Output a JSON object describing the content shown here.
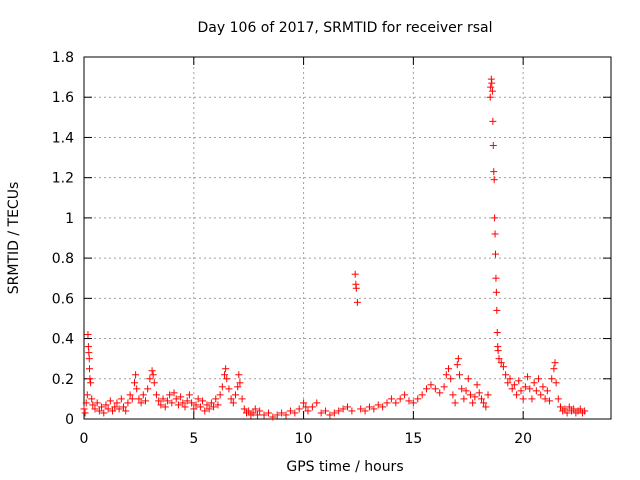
{
  "chart_data": {
    "type": "scatter",
    "title": "Day 106 of 2017, SRMTID for receiver rsal",
    "xlabel": "GPS time / hours",
    "ylabel": "SRMTID / TECUs",
    "xlim": [
      0,
      24
    ],
    "ylim": [
      0,
      1.8
    ],
    "xticks": [
      0,
      5,
      10,
      15,
      20
    ],
    "xtick_labels": [
      "0",
      "5",
      "10",
      "15",
      "20"
    ],
    "yticks": [
      0,
      0.2,
      0.4,
      0.6,
      0.8,
      1.0,
      1.2,
      1.4,
      1.6,
      1.8
    ],
    "ytick_labels": [
      "0",
      "0.2",
      "0.4",
      "0.6",
      "0.8",
      "1",
      "1.2",
      "1.4",
      "1.6",
      "1.8"
    ],
    "grid": true,
    "marker": "+",
    "marker_color": "#ff0000",
    "series": [
      {
        "name": "SRMTID",
        "points": [
          [
            0.0,
            0.05
          ],
          [
            0.05,
            0.03
          ],
          [
            0.1,
            0.08
          ],
          [
            0.15,
            0.12
          ],
          [
            0.18,
            0.42
          ],
          [
            0.2,
            0.36
          ],
          [
            0.22,
            0.33
          ],
          [
            0.24,
            0.3
          ],
          [
            0.25,
            0.25
          ],
          [
            0.27,
            0.2
          ],
          [
            0.3,
            0.18
          ],
          [
            0.35,
            0.1
          ],
          [
            0.4,
            0.07
          ],
          [
            0.5,
            0.05
          ],
          [
            0.6,
            0.08
          ],
          [
            0.7,
            0.04
          ],
          [
            0.8,
            0.06
          ],
          [
            0.9,
            0.03
          ],
          [
            1.0,
            0.07
          ],
          [
            1.1,
            0.05
          ],
          [
            1.2,
            0.09
          ],
          [
            1.3,
            0.04
          ],
          [
            1.4,
            0.06
          ],
          [
            1.5,
            0.08
          ],
          [
            1.6,
            0.05
          ],
          [
            1.7,
            0.1
          ],
          [
            1.8,
            0.06
          ],
          [
            1.9,
            0.04
          ],
          [
            2.0,
            0.08
          ],
          [
            2.1,
            0.12
          ],
          [
            2.2,
            0.1
          ],
          [
            2.3,
            0.18
          ],
          [
            2.35,
            0.22
          ],
          [
            2.4,
            0.15
          ],
          [
            2.5,
            0.1
          ],
          [
            2.6,
            0.08
          ],
          [
            2.7,
            0.12
          ],
          [
            2.8,
            0.09
          ],
          [
            2.9,
            0.15
          ],
          [
            3.0,
            0.2
          ],
          [
            3.1,
            0.24
          ],
          [
            3.15,
            0.22
          ],
          [
            3.2,
            0.18
          ],
          [
            3.3,
            0.12
          ],
          [
            3.4,
            0.09
          ],
          [
            3.5,
            0.07
          ],
          [
            3.6,
            0.1
          ],
          [
            3.7,
            0.06
          ],
          [
            3.8,
            0.09
          ],
          [
            3.9,
            0.12
          ],
          [
            4.0,
            0.08
          ],
          [
            4.1,
            0.13
          ],
          [
            4.2,
            0.1
          ],
          [
            4.3,
            0.07
          ],
          [
            4.4,
            0.11
          ],
          [
            4.5,
            0.08
          ],
          [
            4.6,
            0.06
          ],
          [
            4.7,
            0.09
          ],
          [
            4.8,
            0.12
          ],
          [
            4.9,
            0.08
          ],
          [
            5.0,
            0.05
          ],
          [
            5.1,
            0.07
          ],
          [
            5.2,
            0.1
          ],
          [
            5.3,
            0.06
          ],
          [
            5.4,
            0.09
          ],
          [
            5.5,
            0.04
          ],
          [
            5.6,
            0.07
          ],
          [
            5.7,
            0.05
          ],
          [
            5.8,
            0.08
          ],
          [
            5.9,
            0.06
          ],
          [
            6.0,
            0.1
          ],
          [
            6.1,
            0.07
          ],
          [
            6.2,
            0.12
          ],
          [
            6.3,
            0.16
          ],
          [
            6.4,
            0.22
          ],
          [
            6.45,
            0.25
          ],
          [
            6.5,
            0.2
          ],
          [
            6.6,
            0.15
          ],
          [
            6.7,
            0.1
          ],
          [
            6.8,
            0.08
          ],
          [
            6.9,
            0.12
          ],
          [
            7.0,
            0.16
          ],
          [
            7.05,
            0.22
          ],
          [
            7.1,
            0.18
          ],
          [
            7.2,
            0.1
          ],
          [
            7.3,
            0.05
          ],
          [
            7.4,
            0.03
          ],
          [
            7.5,
            0.04
          ],
          [
            7.6,
            0.02
          ],
          [
            7.7,
            0.03
          ],
          [
            7.8,
            0.05
          ],
          [
            7.9,
            0.02
          ],
          [
            8.0,
            0.04
          ],
          [
            8.2,
            0.02
          ],
          [
            8.4,
            0.03
          ],
          [
            8.6,
            0.01
          ],
          [
            8.8,
            0.02
          ],
          [
            9.0,
            0.03
          ],
          [
            9.2,
            0.02
          ],
          [
            9.4,
            0.04
          ],
          [
            9.6,
            0.03
          ],
          [
            9.8,
            0.05
          ],
          [
            10.0,
            0.08
          ],
          [
            10.1,
            0.06
          ],
          [
            10.2,
            0.04
          ],
          [
            10.4,
            0.06
          ],
          [
            10.6,
            0.08
          ],
          [
            10.8,
            0.03
          ],
          [
            11.0,
            0.04
          ],
          [
            11.2,
            0.02
          ],
          [
            11.4,
            0.03
          ],
          [
            11.6,
            0.04
          ],
          [
            11.8,
            0.05
          ],
          [
            12.0,
            0.06
          ],
          [
            12.2,
            0.04
          ],
          [
            12.35,
            0.72
          ],
          [
            12.38,
            0.67
          ],
          [
            12.4,
            0.65
          ],
          [
            12.45,
            0.58
          ],
          [
            12.6,
            0.05
          ],
          [
            12.8,
            0.04
          ],
          [
            13.0,
            0.06
          ],
          [
            13.2,
            0.05
          ],
          [
            13.4,
            0.07
          ],
          [
            13.6,
            0.06
          ],
          [
            13.8,
            0.08
          ],
          [
            14.0,
            0.1
          ],
          [
            14.2,
            0.08
          ],
          [
            14.4,
            0.1
          ],
          [
            14.6,
            0.12
          ],
          [
            14.8,
            0.09
          ],
          [
            15.0,
            0.08
          ],
          [
            15.2,
            0.1
          ],
          [
            15.4,
            0.12
          ],
          [
            15.6,
            0.15
          ],
          [
            15.8,
            0.17
          ],
          [
            16.0,
            0.15
          ],
          [
            16.2,
            0.13
          ],
          [
            16.4,
            0.16
          ],
          [
            16.5,
            0.22
          ],
          [
            16.6,
            0.25
          ],
          [
            16.7,
            0.2
          ],
          [
            16.8,
            0.12
          ],
          [
            16.9,
            0.08
          ],
          [
            17.0,
            0.27
          ],
          [
            17.05,
            0.3
          ],
          [
            17.1,
            0.22
          ],
          [
            17.2,
            0.15
          ],
          [
            17.3,
            0.1
          ],
          [
            17.4,
            0.14
          ],
          [
            17.5,
            0.2
          ],
          [
            17.6,
            0.12
          ],
          [
            17.7,
            0.08
          ],
          [
            17.8,
            0.11
          ],
          [
            17.9,
            0.17
          ],
          [
            18.0,
            0.13
          ],
          [
            18.1,
            0.1
          ],
          [
            18.2,
            0.08
          ],
          [
            18.3,
            0.06
          ],
          [
            18.4,
            0.12
          ],
          [
            18.5,
            1.6
          ],
          [
            18.52,
            1.65
          ],
          [
            18.55,
            1.69
          ],
          [
            18.57,
            1.67
          ],
          [
            18.6,
            1.63
          ],
          [
            18.62,
            1.48
          ],
          [
            18.64,
            1.36
          ],
          [
            18.66,
            1.23
          ],
          [
            18.68,
            1.19
          ],
          [
            18.7,
            1.0
          ],
          [
            18.72,
            0.92
          ],
          [
            18.74,
            0.82
          ],
          [
            18.76,
            0.7
          ],
          [
            18.78,
            0.63
          ],
          [
            18.8,
            0.54
          ],
          [
            18.82,
            0.43
          ],
          [
            18.84,
            0.36
          ],
          [
            18.86,
            0.34
          ],
          [
            18.9,
            0.3
          ],
          [
            19.0,
            0.28
          ],
          [
            19.1,
            0.26
          ],
          [
            19.2,
            0.22
          ],
          [
            19.3,
            0.18
          ],
          [
            19.4,
            0.2
          ],
          [
            19.5,
            0.15
          ],
          [
            19.6,
            0.17
          ],
          [
            19.7,
            0.12
          ],
          [
            19.8,
            0.19
          ],
          [
            19.9,
            0.14
          ],
          [
            20.0,
            0.1
          ],
          [
            20.1,
            0.16
          ],
          [
            20.2,
            0.21
          ],
          [
            20.3,
            0.15
          ],
          [
            20.4,
            0.1
          ],
          [
            20.5,
            0.18
          ],
          [
            20.6,
            0.14
          ],
          [
            20.7,
            0.2
          ],
          [
            20.8,
            0.12
          ],
          [
            20.9,
            0.16
          ],
          [
            21.0,
            0.1
          ],
          [
            21.1,
            0.14
          ],
          [
            21.2,
            0.09
          ],
          [
            21.3,
            0.2
          ],
          [
            21.4,
            0.25
          ],
          [
            21.45,
            0.28
          ],
          [
            21.5,
            0.18
          ],
          [
            21.6,
            0.1
          ],
          [
            21.7,
            0.06
          ],
          [
            21.8,
            0.04
          ],
          [
            21.9,
            0.05
          ],
          [
            22.0,
            0.03
          ],
          [
            22.1,
            0.06
          ],
          [
            22.2,
            0.04
          ],
          [
            22.3,
            0.05
          ],
          [
            22.4,
            0.03
          ],
          [
            22.5,
            0.04
          ],
          [
            22.6,
            0.05
          ],
          [
            22.7,
            0.03
          ],
          [
            22.8,
            0.04
          ]
        ]
      }
    ]
  }
}
